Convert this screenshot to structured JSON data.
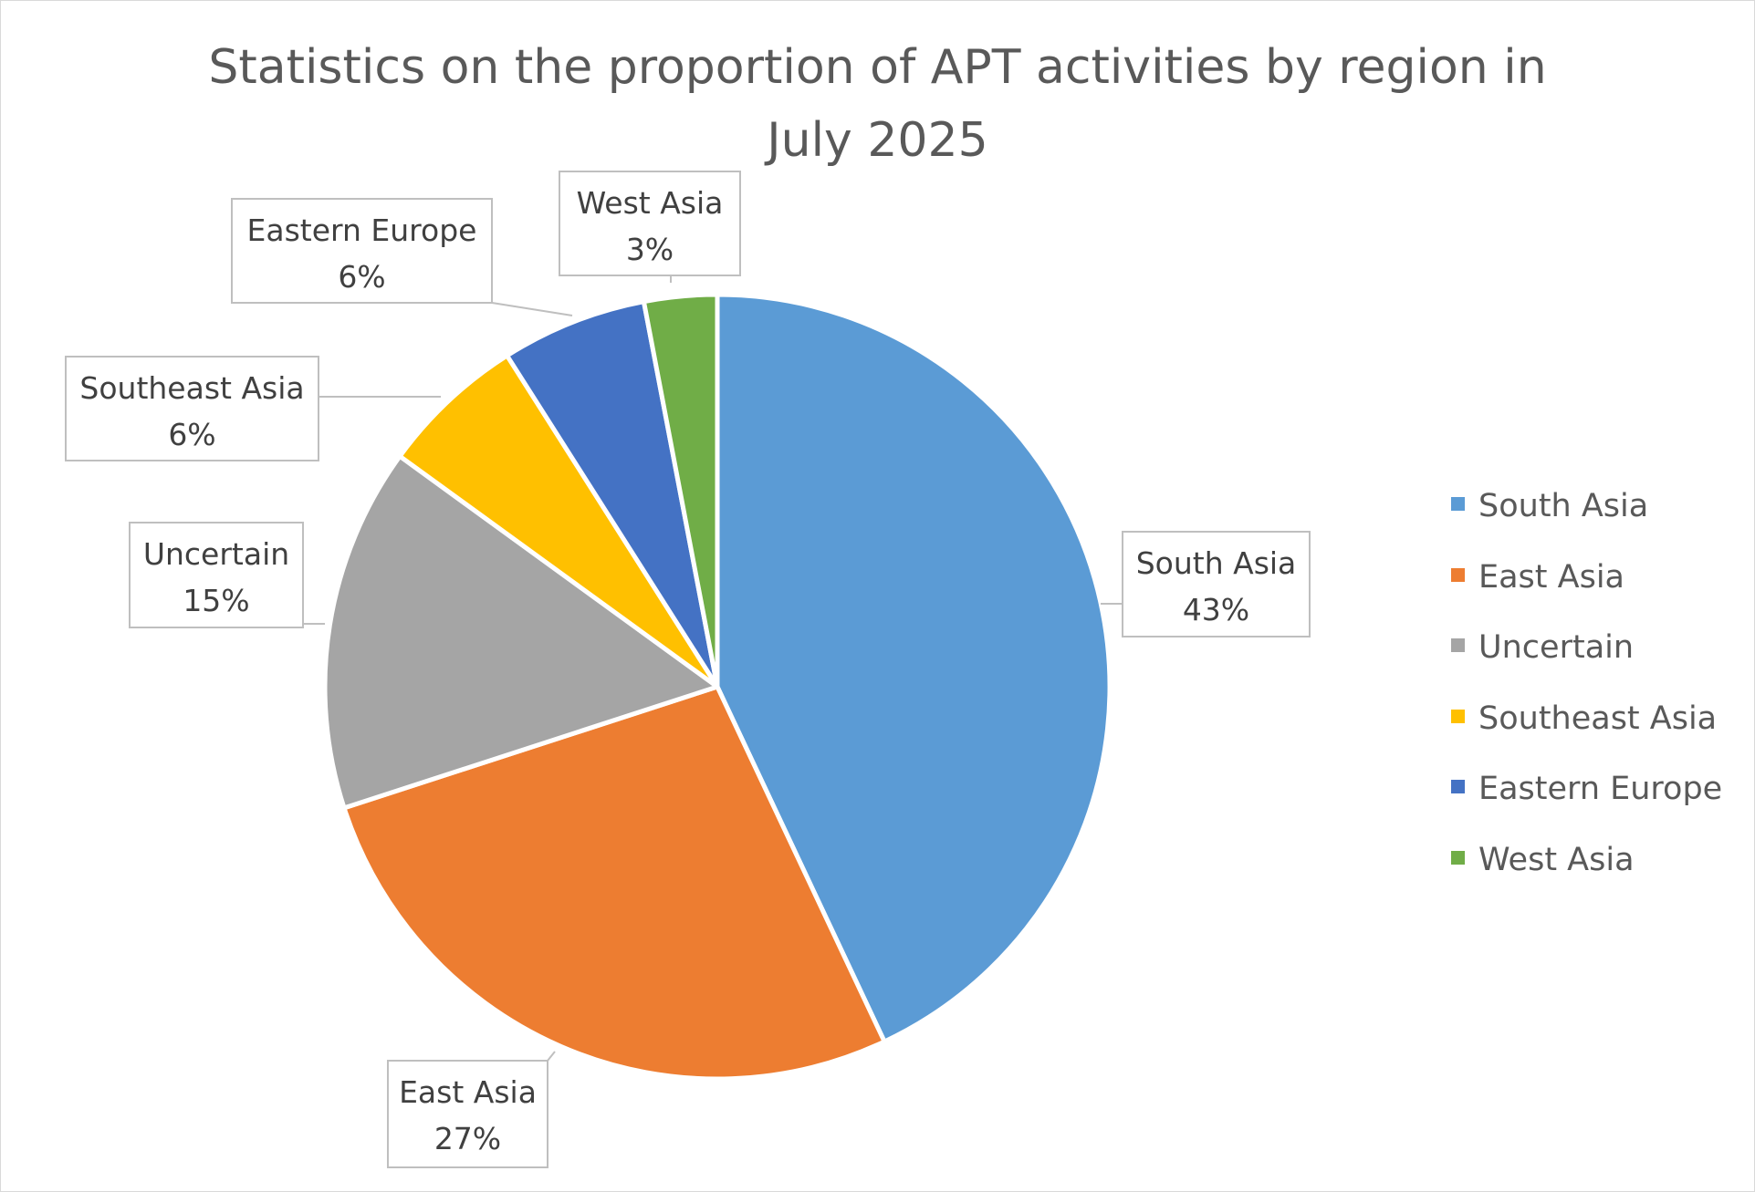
{
  "chart_data": {
    "type": "pie",
    "title_line1": "Statistics on the proportion of APT activities by region in",
    "title_line2": "July 2025",
    "categories": [
      "South Asia",
      "East Asia",
      "Uncertain",
      "Southeast Asia",
      "Eastern Europe",
      "West Asia"
    ],
    "values": [
      43,
      27,
      15,
      6,
      6,
      3
    ],
    "data_labels": [
      "43%",
      "27%",
      "15%",
      "6%",
      "6%",
      "3%"
    ],
    "colors": [
      "#5B9BD5",
      "#ED7D31",
      "#A5A5A5",
      "#FFC000",
      "#4472C4",
      "#70AD47"
    ],
    "legend_position": "right"
  }
}
